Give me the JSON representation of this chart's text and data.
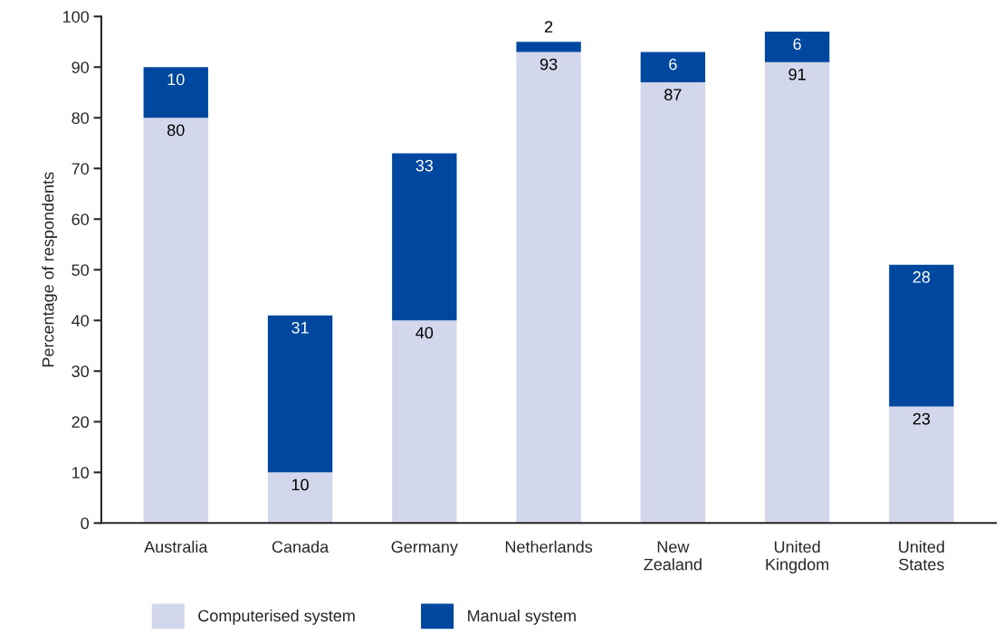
{
  "chart_data": {
    "type": "bar",
    "stacked": true,
    "ylabel": "Percentage of respondents",
    "categories": [
      "Australia",
      "Canada",
      "Germany",
      "Netherlands",
      "New\nZealand",
      "United\nKingdom",
      "United\nStates"
    ],
    "series": [
      {
        "name": "Computerised system",
        "color": "#d3d7ec",
        "values": [
          80,
          10,
          40,
          93,
          87,
          91,
          23
        ]
      },
      {
        "name": "Manual system",
        "color": "#0047a0",
        "values": [
          10,
          31,
          33,
          2,
          6,
          6,
          28
        ]
      }
    ],
    "ylim": [
      0,
      100
    ],
    "yticks": [
      0,
      10,
      20,
      30,
      40,
      50,
      60,
      70,
      80,
      90,
      100
    ],
    "data_labels": true,
    "grid": false,
    "legend": "bottom"
  }
}
